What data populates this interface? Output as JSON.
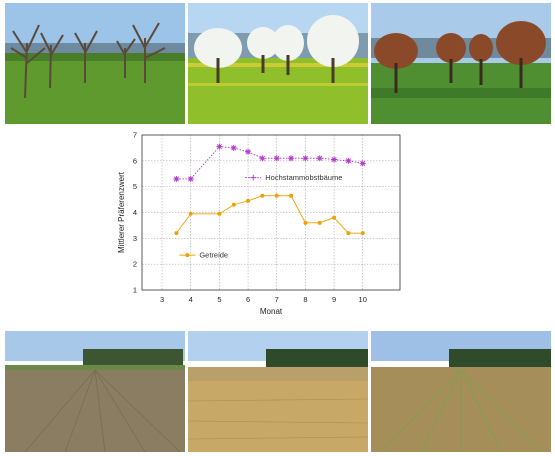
{
  "chart_data": {
    "type": "line",
    "title": "",
    "xlabel": "Monat",
    "ylabel": "Mittlerer Präferenzwert",
    "xlim": [
      2.3,
      11.3
    ],
    "ylim": [
      1,
      7
    ],
    "x_ticks": [
      3,
      4,
      5,
      6,
      7,
      8,
      9,
      10
    ],
    "y_ticks": [
      1,
      2,
      3,
      4,
      5,
      6,
      7
    ],
    "grid": true,
    "series": [
      {
        "name": "Hochstammobstbäume",
        "color": "#b03acb",
        "marker": "star",
        "line_style": "dotted",
        "label_position": "right-of-line",
        "x": [
          3.5,
          4.0,
          5.0,
          5.5,
          6.0,
          6.5,
          7.0,
          7.5,
          8.0,
          8.5,
          9.0,
          9.5,
          10.0
        ],
        "y": [
          5.3,
          5.3,
          6.55,
          6.5,
          6.35,
          6.1,
          6.1,
          6.1,
          6.1,
          6.1,
          6.05,
          6.0,
          5.9
        ]
      },
      {
        "name": "Getreide",
        "color": "#f0a000",
        "marker": "circle",
        "line_style": "solid",
        "label_position": "below-left",
        "x": [
          3.5,
          4.0,
          5.0,
          5.5,
          6.0,
          6.5,
          7.0,
          7.5,
          8.0,
          8.5,
          9.0,
          9.5,
          10.0
        ],
        "y": [
          3.2,
          3.95,
          3.95,
          4.3,
          4.45,
          4.65,
          4.65,
          4.65,
          3.6,
          3.6,
          3.8,
          3.2,
          3.2
        ]
      }
    ]
  },
  "photos": {
    "top": [
      {
        "subject": "bare orchard trees in spring meadow",
        "sky": "#9cc3e8",
        "ground": "#5f9a2e"
      },
      {
        "subject": "blossoming fruit trees with dandelion meadow",
        "sky": "#b7d6f2",
        "ground": "#8fbf2a"
      },
      {
        "subject": "orchard trees in autumn foliage",
        "sky": "#a9cbe9",
        "ground": "#4f8f32"
      }
    ],
    "bottom": [
      {
        "subject": "plowed field with young crop rows",
        "sky": "#a8c8ea",
        "ground": "#8b7d62"
      },
      {
        "subject": "ripe golden grain field",
        "sky": "#b3d0ee",
        "ground": "#c8a866"
      },
      {
        "subject": "harvested stubble field with green regrowth",
        "sky": "#9fc0e6",
        "ground": "#a58e5a"
      }
    ]
  }
}
